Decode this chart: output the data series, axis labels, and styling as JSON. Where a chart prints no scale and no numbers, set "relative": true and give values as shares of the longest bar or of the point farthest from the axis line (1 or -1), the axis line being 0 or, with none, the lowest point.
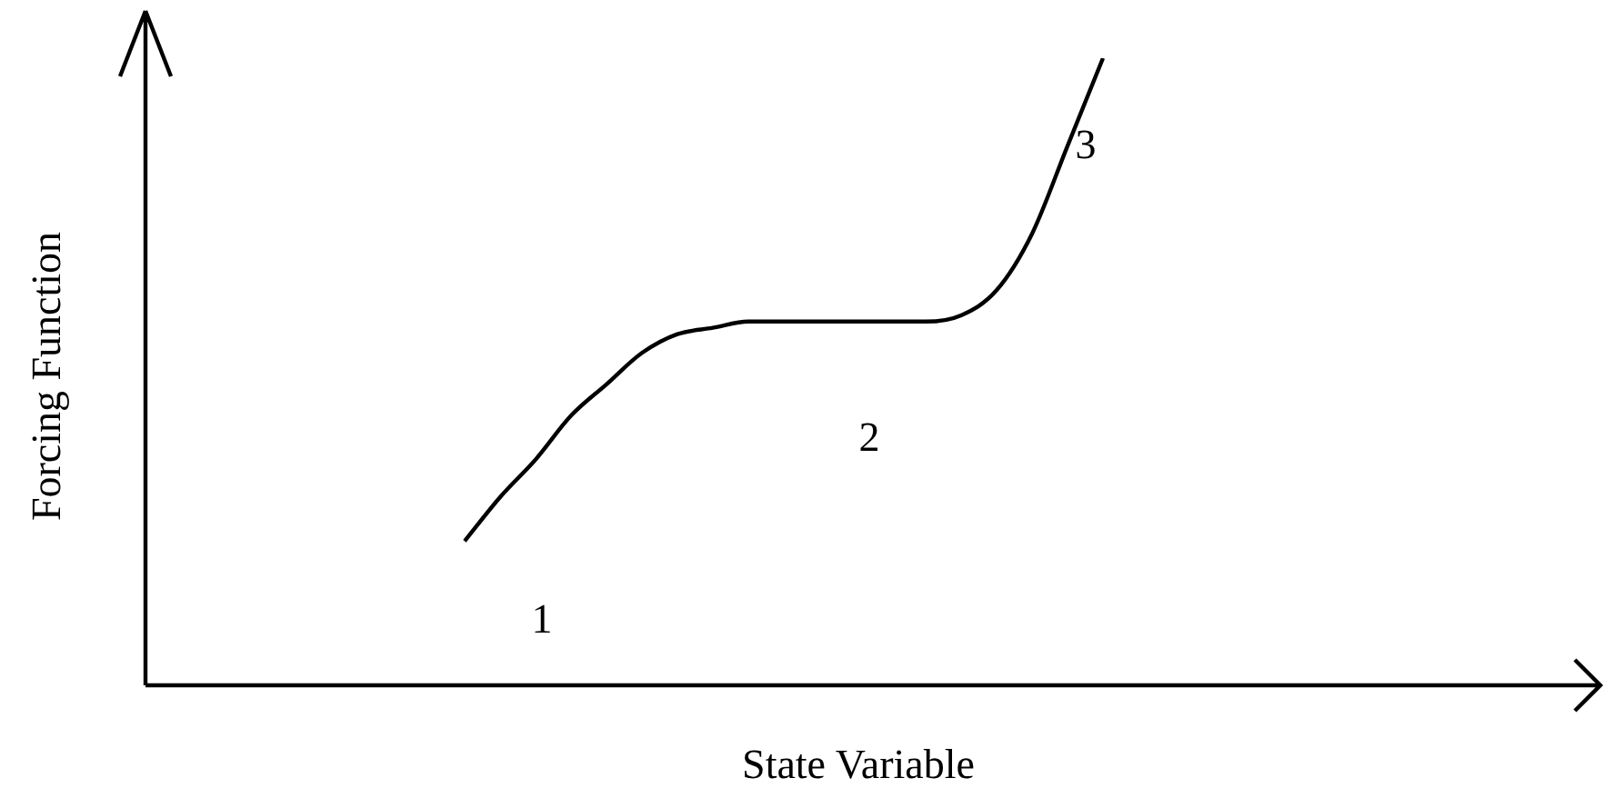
{
  "chart_data": {
    "type": "line",
    "relative": true,
    "xlabel": "State Variable",
    "ylabel": "Forcing Function",
    "grid": false,
    "legend": false,
    "marker": "none",
    "line_style": "solid",
    "categories": [
      null,
      null,
      null,
      null,
      null,
      null,
      null,
      null,
      null,
      null,
      null,
      null,
      null,
      null,
      null,
      null,
      null,
      null,
      null,
      null,
      null,
      null,
      null,
      null,
      null,
      null,
      null,
      null,
      null,
      null,
      null,
      null,
      null,
      null,
      null,
      null,
      null,
      null,
      null,
      null,
      null
    ],
    "series": [
      {
        "color": "#000000",
        "values": [
          null,
          null,
          null,
          null,
          null,
          null,
          null,
          null,
          null,
          0.23,
          0.3,
          0.36,
          0.43,
          0.48,
          0.53,
          0.56,
          0.57,
          0.58,
          0.58,
          0.58,
          0.58,
          0.58,
          0.58,
          0.59,
          0.63,
          0.72,
          0.86,
          1,
          null,
          null,
          null,
          null,
          null,
          null,
          null,
          null,
          null,
          null,
          null,
          null,
          null
        ]
      }
    ],
    "annotations": [
      "1",
      "2",
      "3"
    ]
  }
}
